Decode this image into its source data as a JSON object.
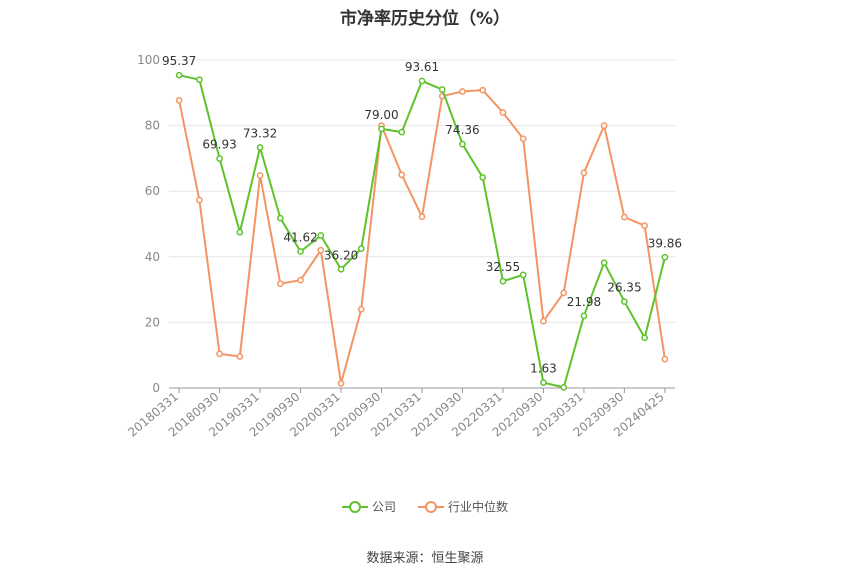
{
  "chart_data": {
    "type": "line",
    "title": "市净率历史分位（%）",
    "xlabel": "",
    "ylabel": "",
    "ylim": [
      0,
      100
    ],
    "yticks": [
      "0",
      "20",
      "40",
      "60",
      "80",
      "100"
    ],
    "grid": true,
    "legend_position": "bottom",
    "categories": [
      "20180331",
      "20180630",
      "20180930",
      "20181231",
      "20190331",
      "20190630",
      "20190930",
      "20191231",
      "20200331",
      "20200630",
      "20200930",
      "20201231",
      "20210331",
      "20210630",
      "20210930",
      "20211231",
      "20220331",
      "20220630",
      "20220930",
      "20221231",
      "20230331",
      "20230630",
      "20230930",
      "20231231",
      "20240425"
    ],
    "xtick_labels": [
      "20180331",
      "20180930",
      "20190331",
      "20190930",
      "20200331",
      "20200930",
      "20210331",
      "20210930",
      "20220331",
      "20220930",
      "20230331",
      "20230930",
      "20240425"
    ],
    "series": [
      {
        "name": "公司",
        "color": "#5ec32b",
        "values": [
          95.37,
          94,
          69.93,
          47.5,
          73.32,
          51.8,
          41.62,
          46.5,
          36.2,
          42.5,
          79.0,
          78,
          93.61,
          91,
          74.36,
          64.2,
          32.55,
          34.5,
          1.63,
          0.2,
          21.98,
          38.2,
          26.35,
          15.3,
          39.86
        ],
        "labels": [
          "95.37",
          "",
          "69.93",
          "",
          "73.32",
          "",
          "41.62",
          "",
          "36.20",
          "",
          "79.00",
          "",
          "93.61",
          "",
          "74.36",
          "",
          "32.55",
          "",
          "1.63",
          "",
          "21.98",
          "",
          "26.35",
          "",
          "39.86"
        ]
      },
      {
        "name": "行业中位数",
        "color": "#f39563",
        "values": [
          87.7,
          57.3,
          10.4,
          9.6,
          64.8,
          31.8,
          32.9,
          42.0,
          1.4,
          24.0,
          80.0,
          65.0,
          52.2,
          89.0,
          90.4,
          90.8,
          84.0,
          76.0,
          20.4,
          29.0,
          65.6,
          80.0,
          52.1,
          49.5,
          8.8
        ]
      }
    ],
    "source": "数据来源：恒生聚源"
  }
}
